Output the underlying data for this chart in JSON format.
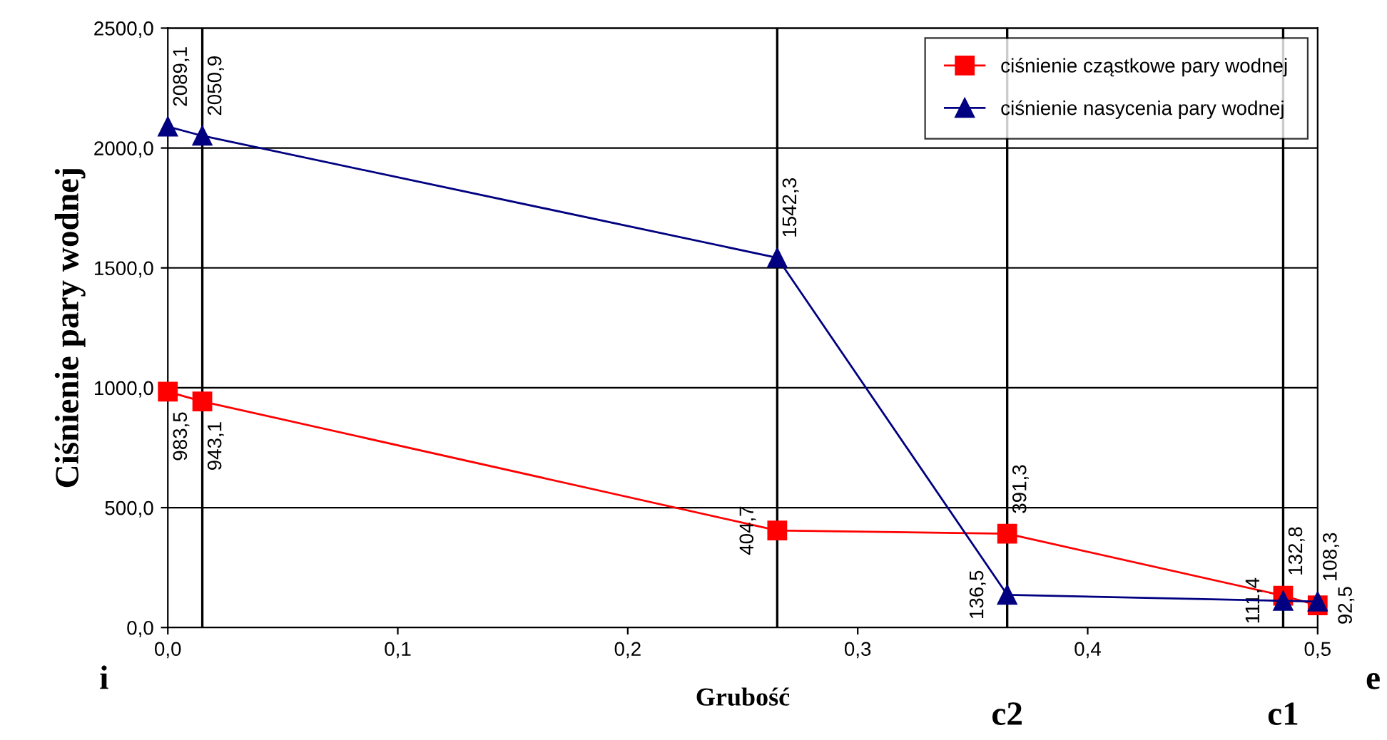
{
  "chart_data": {
    "type": "line",
    "xlabel": "Grubość",
    "ylabel": "Ciśnienie pary wodnej",
    "x": [
      0,
      0.015,
      0.265,
      0.365,
      0.485,
      0.5
    ],
    "series": [
      {
        "name": "ciśnienie cząstkowe pary wodnej",
        "color": "#ff0000",
        "marker": "square",
        "values": [
          983.5,
          943.1,
          404.7,
          391.3,
          132.8,
          92.5
        ],
        "value_labels": [
          "983,5",
          "943,1",
          "404,7",
          "391,3",
          "132,8",
          "92,5"
        ]
      },
      {
        "name": "ciśnienie nasycenia pary wodnej",
        "color": "#000080",
        "marker": "triangle",
        "values": [
          2089.1,
          2050.9,
          1542.3,
          136.5,
          111.4,
          108.3
        ],
        "value_labels": [
          "2089,1",
          "2050,9",
          "1542,3",
          "136,5",
          "111,4",
          "108,3"
        ]
      }
    ],
    "xlim": [
      0,
      0.5
    ],
    "ylim": [
      0,
      2500
    ],
    "xticks": [
      {
        "value": 0,
        "label": "0,0"
      },
      {
        "value": 0.1,
        "label": "0,1"
      },
      {
        "value": 0.2,
        "label": "0,2"
      },
      {
        "value": 0.3,
        "label": "0,3"
      },
      {
        "value": 0.4,
        "label": "0,4"
      },
      {
        "value": 0.5,
        "label": "0,5"
      }
    ],
    "yticks": [
      {
        "value": 0,
        "label": "0,0"
      },
      {
        "value": 500,
        "label": "500,0"
      },
      {
        "value": 1000,
        "label": "1000,0"
      },
      {
        "value": 1500,
        "label": "1500,0"
      },
      {
        "value": 2000,
        "label": "2000,0"
      },
      {
        "value": 2500,
        "label": "2500,0"
      }
    ],
    "grid": "y",
    "legend": "top right",
    "line_style": "solid",
    "ref_lines": [
      {
        "axis": "x",
        "value": 0.015,
        "color": "#000000"
      },
      {
        "axis": "x",
        "value": 0.265,
        "color": "#000000"
      },
      {
        "axis": "x",
        "value": 0.365,
        "color": "#000000",
        "label": "c2"
      },
      {
        "axis": "x",
        "value": 0.485,
        "color": "#000000",
        "label": "c1"
      }
    ],
    "annotations": [
      "i",
      "e"
    ]
  }
}
